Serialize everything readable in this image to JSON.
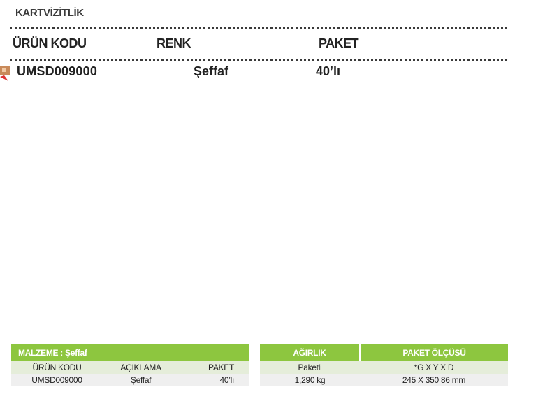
{
  "category": "KARTVİZİTLİK",
  "product_header": {
    "code": "ÜRÜN KODU",
    "color": "RENK",
    "package": "PAKET"
  },
  "product_row": {
    "code": "UMSD009000",
    "color": "Şeffaf",
    "package": "40’lı"
  },
  "material_table": {
    "title": "MALZEME : Şeffaf",
    "columns": [
      "ÜRÜN KODU",
      "AÇIKLAMA",
      "PAKET"
    ],
    "row": [
      "UMSD009000",
      "Şeffaf",
      "40’lı"
    ]
  },
  "shipping_table": {
    "columns": [
      "AĞIRLIK",
      "PAKET ÖLÇÜSÜ"
    ],
    "sub": [
      "Paketli",
      "*G X Y X D"
    ],
    "row": [
      "1,290 kg",
      "245 X 350 86 mm"
    ]
  },
  "colors": {
    "accent": "#8dc63f",
    "sub_row": "#e5edda",
    "value_row": "#efefef"
  }
}
